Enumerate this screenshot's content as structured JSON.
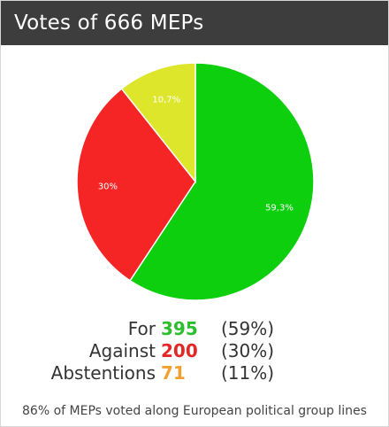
{
  "header": {
    "title": "Votes of 666 MEPs"
  },
  "chart_data": {
    "type": "pie",
    "slices": [
      {
        "label": "59,3%",
        "value": 59.3,
        "color": "#0dcf0d"
      },
      {
        "label": "30%",
        "value": 30.0,
        "color": "#f52525"
      },
      {
        "label": "10,7%",
        "value": 10.7,
        "color": "#dde62a"
      }
    ]
  },
  "legend": {
    "items": [
      {
        "name": "For",
        "count": "395",
        "pct": "(59%)",
        "color": "#2dbd2d"
      },
      {
        "name": "Against",
        "count": "200",
        "pct": "(30%)",
        "color": "#e32626"
      },
      {
        "name": "Abstentions",
        "count": "71",
        "pct": "(11%)",
        "color": "#f0a030"
      }
    ]
  },
  "footer": {
    "text": "86% of MEPs voted along European political group lines"
  }
}
